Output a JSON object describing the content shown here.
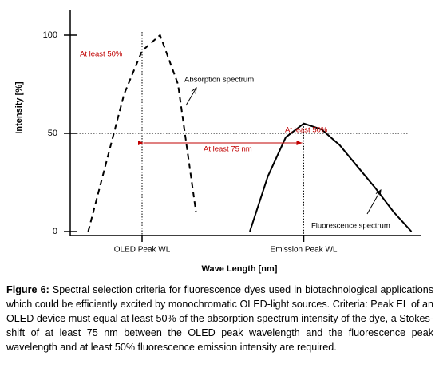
{
  "chart_data": {
    "type": "line",
    "y_label": "Intensity [%]",
    "x_label": "Wave Length [nm]",
    "categories": [
      null,
      null,
      null,
      null,
      "OLED Peak WL",
      null,
      null,
      null,
      null,
      null,
      null,
      null,
      null,
      "Emission Peak WL",
      null,
      null,
      null,
      null,
      null,
      null
    ],
    "series": [
      {
        "name": "Absorption spectrum",
        "color": "#000000",
        "dashed": true,
        "values": [
          null,
          0,
          35,
          70,
          92,
          100,
          75,
          10,
          null,
          null,
          null,
          null,
          null,
          null,
          null,
          null,
          null,
          null,
          null,
          null
        ]
      },
      {
        "name": "Fluorescence spectrum",
        "color": "#000000",
        "dashed": false,
        "values": [
          null,
          null,
          null,
          null,
          null,
          null,
          null,
          null,
          null,
          null,
          0,
          28,
          48,
          55,
          52,
          44,
          33,
          22,
          10,
          0
        ]
      }
    ],
    "ylim": [
      0,
      110
    ],
    "yticks": [
      0,
      50,
      100
    ],
    "annotations": [
      "At least 50%",
      "At least 50%",
      "At least 75 nm"
    ],
    "annotation_color": "#c00000"
  },
  "caption": {
    "label": "Figure 6:",
    "text": " Spectral selection criteria for fluorescence dyes used in biotechnological applications which could be efficiently excited by monochromatic OLED-light sources. Criteria: Peak EL of an OLED device must equal at least 50% of the absorption spectrum intensity of the dye, a Stokes-shift of at least 75 nm between the OLED peak wavelength and the fluorescence peak wavelength and at least 50% fluorescence emission intensity are required."
  }
}
